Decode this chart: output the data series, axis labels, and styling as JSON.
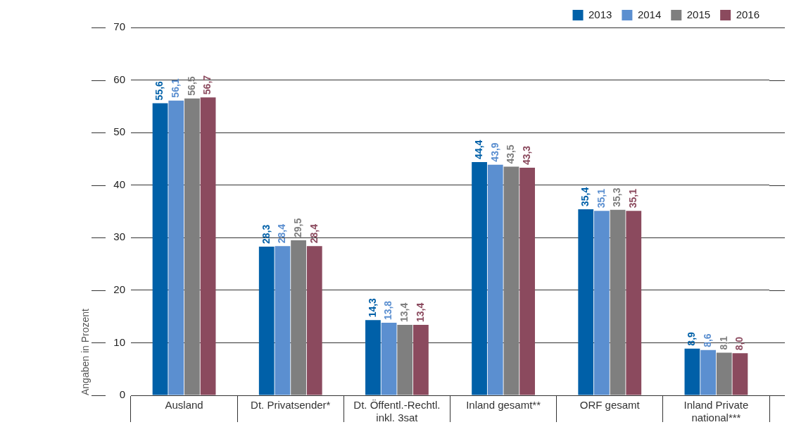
{
  "chart_data": {
    "type": "bar",
    "ylabel": "Angaben in Prozent",
    "categories": [
      "Ausland",
      "Dt. Privatsender*",
      "Dt. Öffentl.-Rechtl. inkl. 3sat",
      "Inland gesamt**",
      "ORF gesamt",
      "Inland Private national***"
    ],
    "series": [
      {
        "name": "2013",
        "color": "#0060a8",
        "values": [
          55.6,
          28.3,
          14.3,
          44.4,
          35.4,
          8.9
        ],
        "value_labels": [
          "55,6",
          "28,3",
          "14,3",
          "44,4",
          "35,4",
          "8,9"
        ]
      },
      {
        "name": "2014",
        "color": "#5b8fd0",
        "values": [
          56.1,
          28.4,
          13.8,
          43.9,
          35.1,
          8.6
        ],
        "value_labels": [
          "56,1",
          "28,4",
          "13,8",
          "43,9",
          "35,1",
          "8,6"
        ]
      },
      {
        "name": "2015",
        "color": "#7f7f7f",
        "values": [
          56.5,
          29.5,
          13.4,
          43.5,
          35.3,
          8.1
        ],
        "value_labels": [
          "56,5",
          "29,5",
          "13,4",
          "43,5",
          "35,3",
          "8,1"
        ]
      },
      {
        "name": "2016",
        "color": "#8b4a5e",
        "values": [
          56.7,
          28.4,
          13.4,
          43.3,
          35.1,
          8.0
        ],
        "value_labels": [
          "56,7",
          "28,4",
          "13,4",
          "43,3",
          "35,1",
          "8,0"
        ]
      }
    ],
    "ylim": [
      0,
      70
    ],
    "yticks": [
      0,
      10,
      20,
      30,
      40,
      50,
      60,
      70
    ],
    "grid": "y",
    "legend": "top right"
  }
}
